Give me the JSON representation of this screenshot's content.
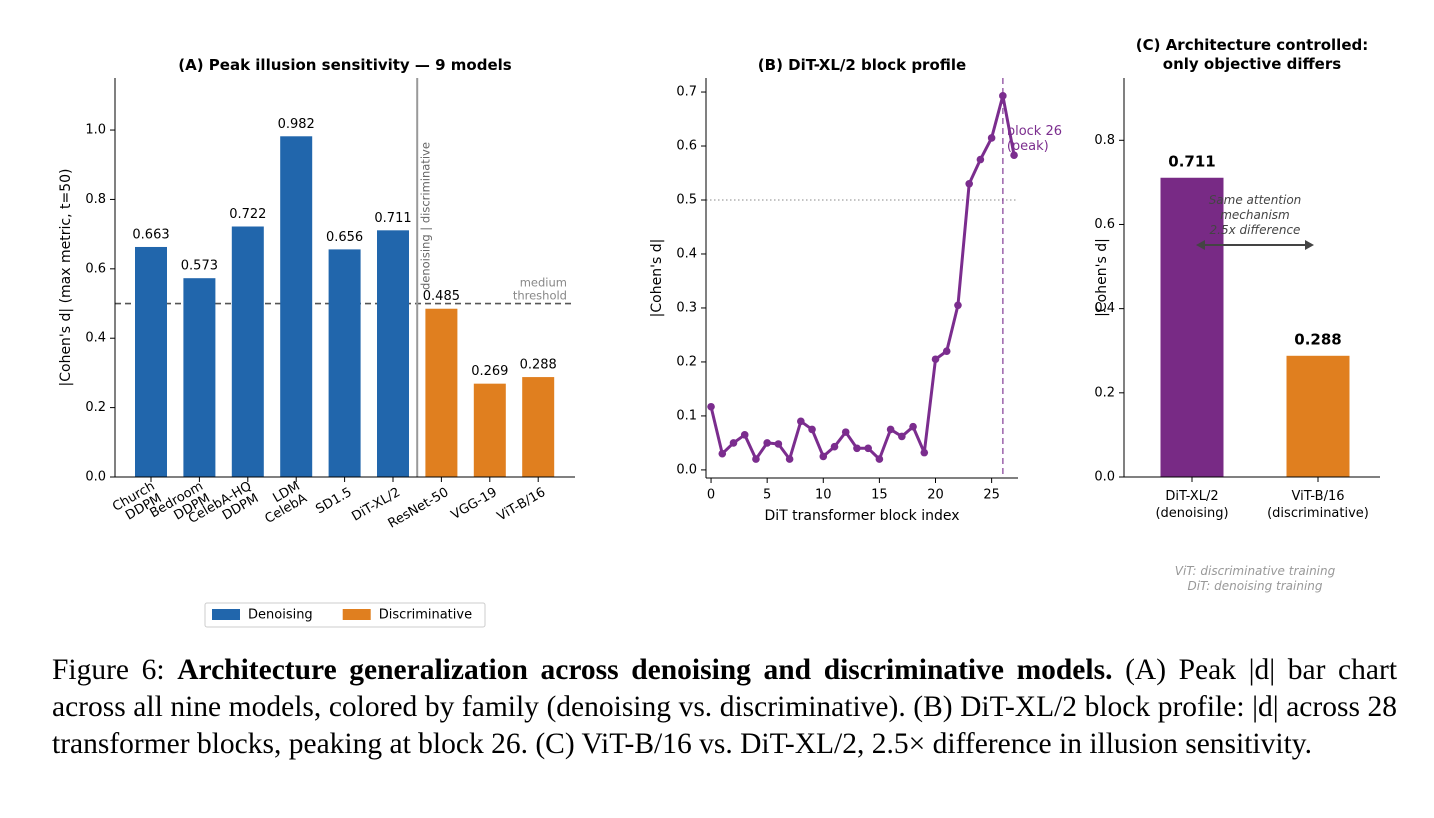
{
  "chart_data": [
    {
      "type": "bar",
      "title": "(A)  Peak illusion sensitivity — 9 models",
      "ylabel": "|Cohen's d|  (max metric, t=50)",
      "categories": [
        "Church\nDDPM",
        "Bedroom\nDDPM",
        "CelebA-HQ\nDDPM",
        "LDM\nCelebA",
        "SD1.5",
        "DiT-XL/2",
        "ResNet-50",
        "VGG-19",
        "ViT-B/16"
      ],
      "series": [
        {
          "name": "Denoising",
          "color": "#2166ac",
          "values": [
            0.663,
            0.573,
            0.722,
            0.982,
            0.656,
            0.711,
            null,
            null,
            null
          ]
        },
        {
          "name": "Discriminative",
          "color": "#e07f1f",
          "values": [
            null,
            null,
            null,
            null,
            null,
            null,
            0.485,
            0.269,
            0.288
          ]
        }
      ],
      "ylim": [
        0,
        1.15
      ],
      "yticks": [
        {
          "value": 0,
          "label": "0.0"
        },
        0.2,
        0.4,
        0.6,
        0.8,
        {
          "value": 1,
          "label": "1.0"
        }
      ],
      "hline": {
        "value": 0.5,
        "label": "medium\nthreshold"
      },
      "divider_label": "denoising | discriminative",
      "legend": "below"
    },
    {
      "type": "line",
      "title": "(B)  DiT-XL/2 block profile",
      "xlabel": "DiT transformer block index",
      "ylabel": "|Cohen's d|",
      "color": "#7b2d8e",
      "x": [
        0,
        1,
        2,
        3,
        4,
        5,
        6,
        7,
        8,
        9,
        10,
        11,
        12,
        13,
        14,
        15,
        16,
        17,
        18,
        19,
        20,
        21,
        22,
        23,
        24,
        25,
        26,
        27
      ],
      "values": [
        0.117,
        0.03,
        0.05,
        0.065,
        0.02,
        0.05,
        0.048,
        0.02,
        0.09,
        0.075,
        0.025,
        0.043,
        0.07,
        0.04,
        0.04,
        0.02,
        0.075,
        0.062,
        0.08,
        0.032,
        0.205,
        0.22,
        0.305,
        0.53,
        0.575,
        0.615,
        0.693,
        0.583
      ],
      "xlim": [
        -0.45,
        27.35
      ],
      "xticks": [
        0,
        5,
        10,
        15,
        20,
        25
      ],
      "ylim": [
        -0.015,
        0.726
      ],
      "yticks": [
        {
          "value": 0,
          "label": "0.0"
        },
        0.1,
        0.2,
        0.3,
        0.4,
        0.5,
        0.6,
        0.7
      ],
      "hline": 0.5,
      "vline": {
        "value": 26,
        "label": "block 26\n(peak)"
      }
    },
    {
      "type": "bar",
      "title": "(C)  Architecture controlled:\nonly objective differs",
      "ylabel": "|Cohen's d|",
      "categories": [
        "DiT-XL/2\n(denoising)",
        "ViT-B/16\n(discriminative)"
      ],
      "values": [
        0.711,
        0.288
      ],
      "colors": [
        "#782a85",
        "#e07f1f"
      ],
      "ylim": [
        0,
        0.948
      ],
      "yticks": [
        {
          "value": 0,
          "label": "0.0"
        },
        0.2,
        0.4,
        0.6,
        0.8
      ],
      "annotation": "Same attention\nmechanism\n2.5x difference",
      "note": "ViT: discriminative training\nDiT: denoising training"
    }
  ],
  "caption": {
    "label": "Figure 6:",
    "bold": "Architecture generalization across denoising and discriminative models.",
    "text": "(A) Peak |d| bar chart across all nine models, colored by family (denoising vs. discriminative). (B) DiT-XL/2 block profile: |d| across 28 transformer blocks, peaking at block 26. (C) ViT-B/16 vs. DiT-XL/2, 2.5× difference in illusion sensitivity."
  }
}
